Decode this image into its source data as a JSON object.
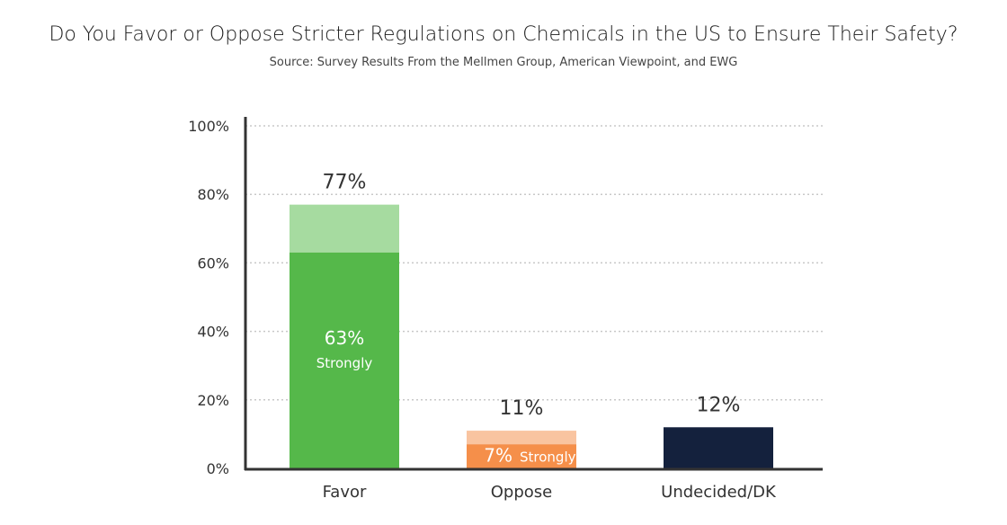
{
  "chart_data": {
    "type": "bar",
    "title": "Do You Favor or Oppose Stricter Regulations on Chemicals in the US to Ensure Their Safety?",
    "subtitle": "Source: Survey Results From the Mellmen Group, American Viewpoint, and EWG",
    "categories": [
      "Favor",
      "Oppose",
      "Undecided/DK"
    ],
    "ylim": [
      0,
      100
    ],
    "yticks": [
      "0%",
      "20%",
      "40%",
      "60%",
      "80%",
      "100%"
    ],
    "ytick_values": [
      0,
      20,
      40,
      60,
      80,
      100
    ],
    "grid": true,
    "bars": [
      {
        "category": "Favor",
        "total": 77,
        "total_label": "77%",
        "strong": 63,
        "strong_label": "63%",
        "strong_note": "Strongly",
        "color_total": "#a6dba0",
        "color_strong": "#55b84a"
      },
      {
        "category": "Oppose",
        "total": 11,
        "total_label": "11%",
        "strong": 7,
        "strong_label": "7%",
        "strong_note": "Strongly",
        "color_total": "#f9c4a0",
        "color_strong": "#f58f4a"
      },
      {
        "category": "Undecided/DK",
        "total": 12,
        "total_label": "12%",
        "color_total": "#14213d"
      }
    ]
  }
}
